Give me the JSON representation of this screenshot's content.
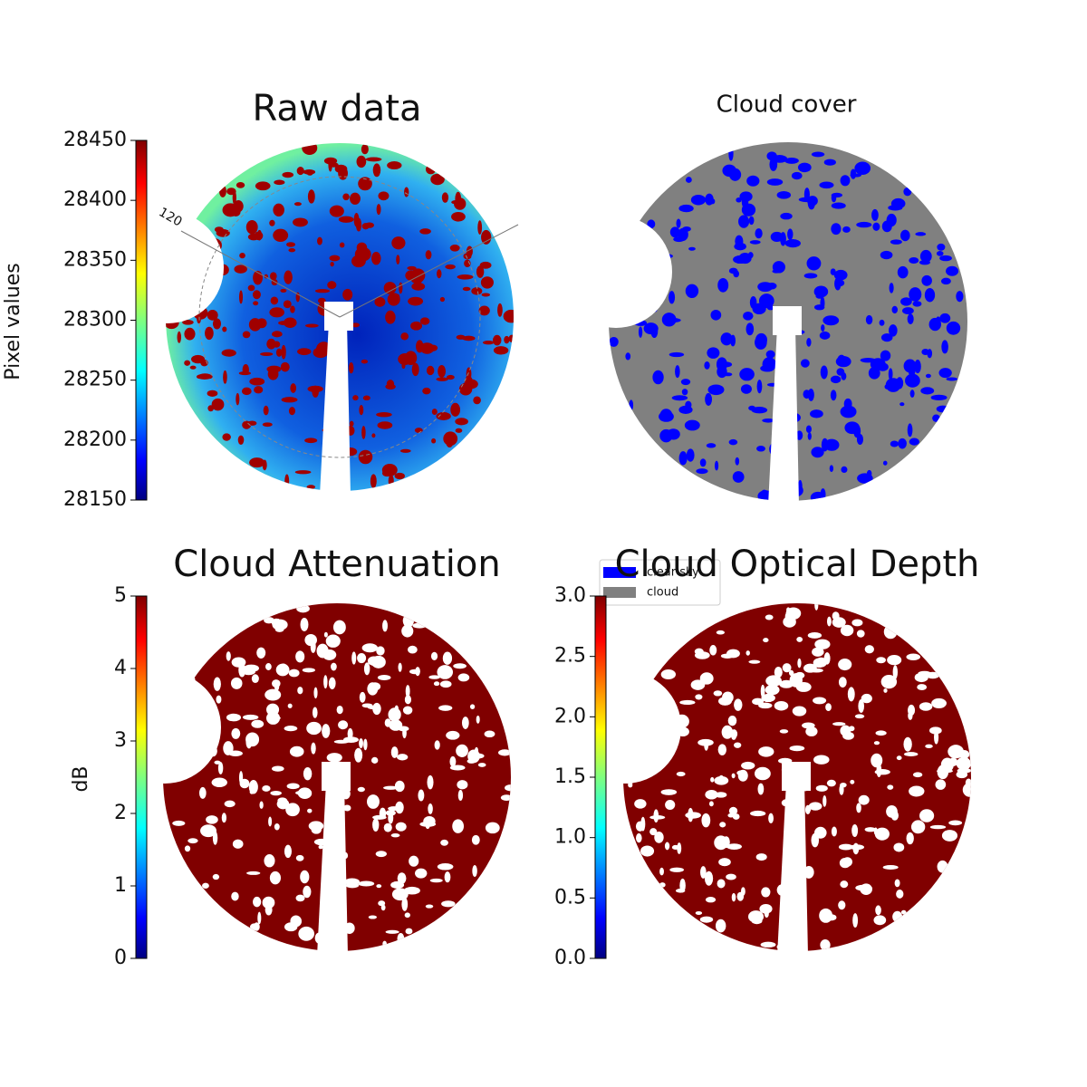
{
  "chart_data": [
    {
      "type": "image",
      "title": "Raw data",
      "colorbar_label": "Pixel values",
      "colormap": "jet",
      "ylim": [
        28150,
        28450
      ],
      "yticks": [
        28150,
        28200,
        28250,
        28300,
        28350,
        28400,
        28450
      ],
      "polar_label": "120"
    },
    {
      "type": "image",
      "title": "Cloud cover",
      "series": [
        {
          "name": "clear sky",
          "color": "#0000ff"
        },
        {
          "name": "cloud",
          "color": "#808080"
        }
      ]
    },
    {
      "type": "image",
      "title": "Cloud Attenuation",
      "colorbar_label": "dB",
      "colormap": "jet",
      "ylim": [
        0,
        5
      ],
      "yticks": [
        0,
        1,
        2,
        3,
        4,
        5
      ]
    },
    {
      "type": "image",
      "title": "Cloud Optical Depth",
      "colormap": "jet",
      "ylim": [
        0,
        3
      ],
      "yticks": [
        {
          "value": 0,
          "label": "0.0"
        },
        0.5,
        {
          "value": 1,
          "label": "1.0"
        },
        1.5,
        {
          "value": 2,
          "label": "2.0"
        },
        2.5,
        {
          "value": 3,
          "label": "3.0"
        }
      ]
    }
  ]
}
